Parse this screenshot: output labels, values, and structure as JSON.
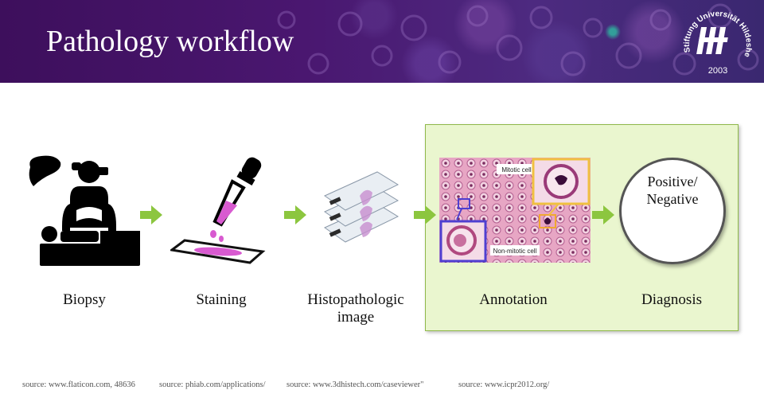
{
  "header": {
    "title": "Pathology workflow",
    "logo_text": "Stiftung Universität Hildesheim",
    "logo_year": "2003"
  },
  "steps": [
    {
      "label": "Biopsy",
      "icon": "doctor-icon"
    },
    {
      "label": "Staining",
      "icon": "pipette-icon"
    },
    {
      "label": "Histopathologic image",
      "icon": "slides-icon"
    },
    {
      "label": "Annotation",
      "icon": "microscopy-annotation-image"
    },
    {
      "label": "Diagnosis",
      "icon": "diagnosis-circle"
    }
  ],
  "annotation_image": {
    "mitotic_label": "Mitotic cell",
    "non_mitotic_label": "Non-mitotic cell"
  },
  "diagnosis": {
    "line1": "Positive/",
    "line2": "Negative"
  },
  "sources": [
    "source:  www.flaticon.com, 48636",
    "source: phiab.com/applications/",
    "source: www.3dhistech.com/caseviewer\"",
    "source: www.icpr2012.org/"
  ],
  "colors": {
    "banner": "#4a1770",
    "highlight_bg": "#eaf6cf",
    "arrow": "#8cc63f",
    "stain": "#d85ad0"
  }
}
